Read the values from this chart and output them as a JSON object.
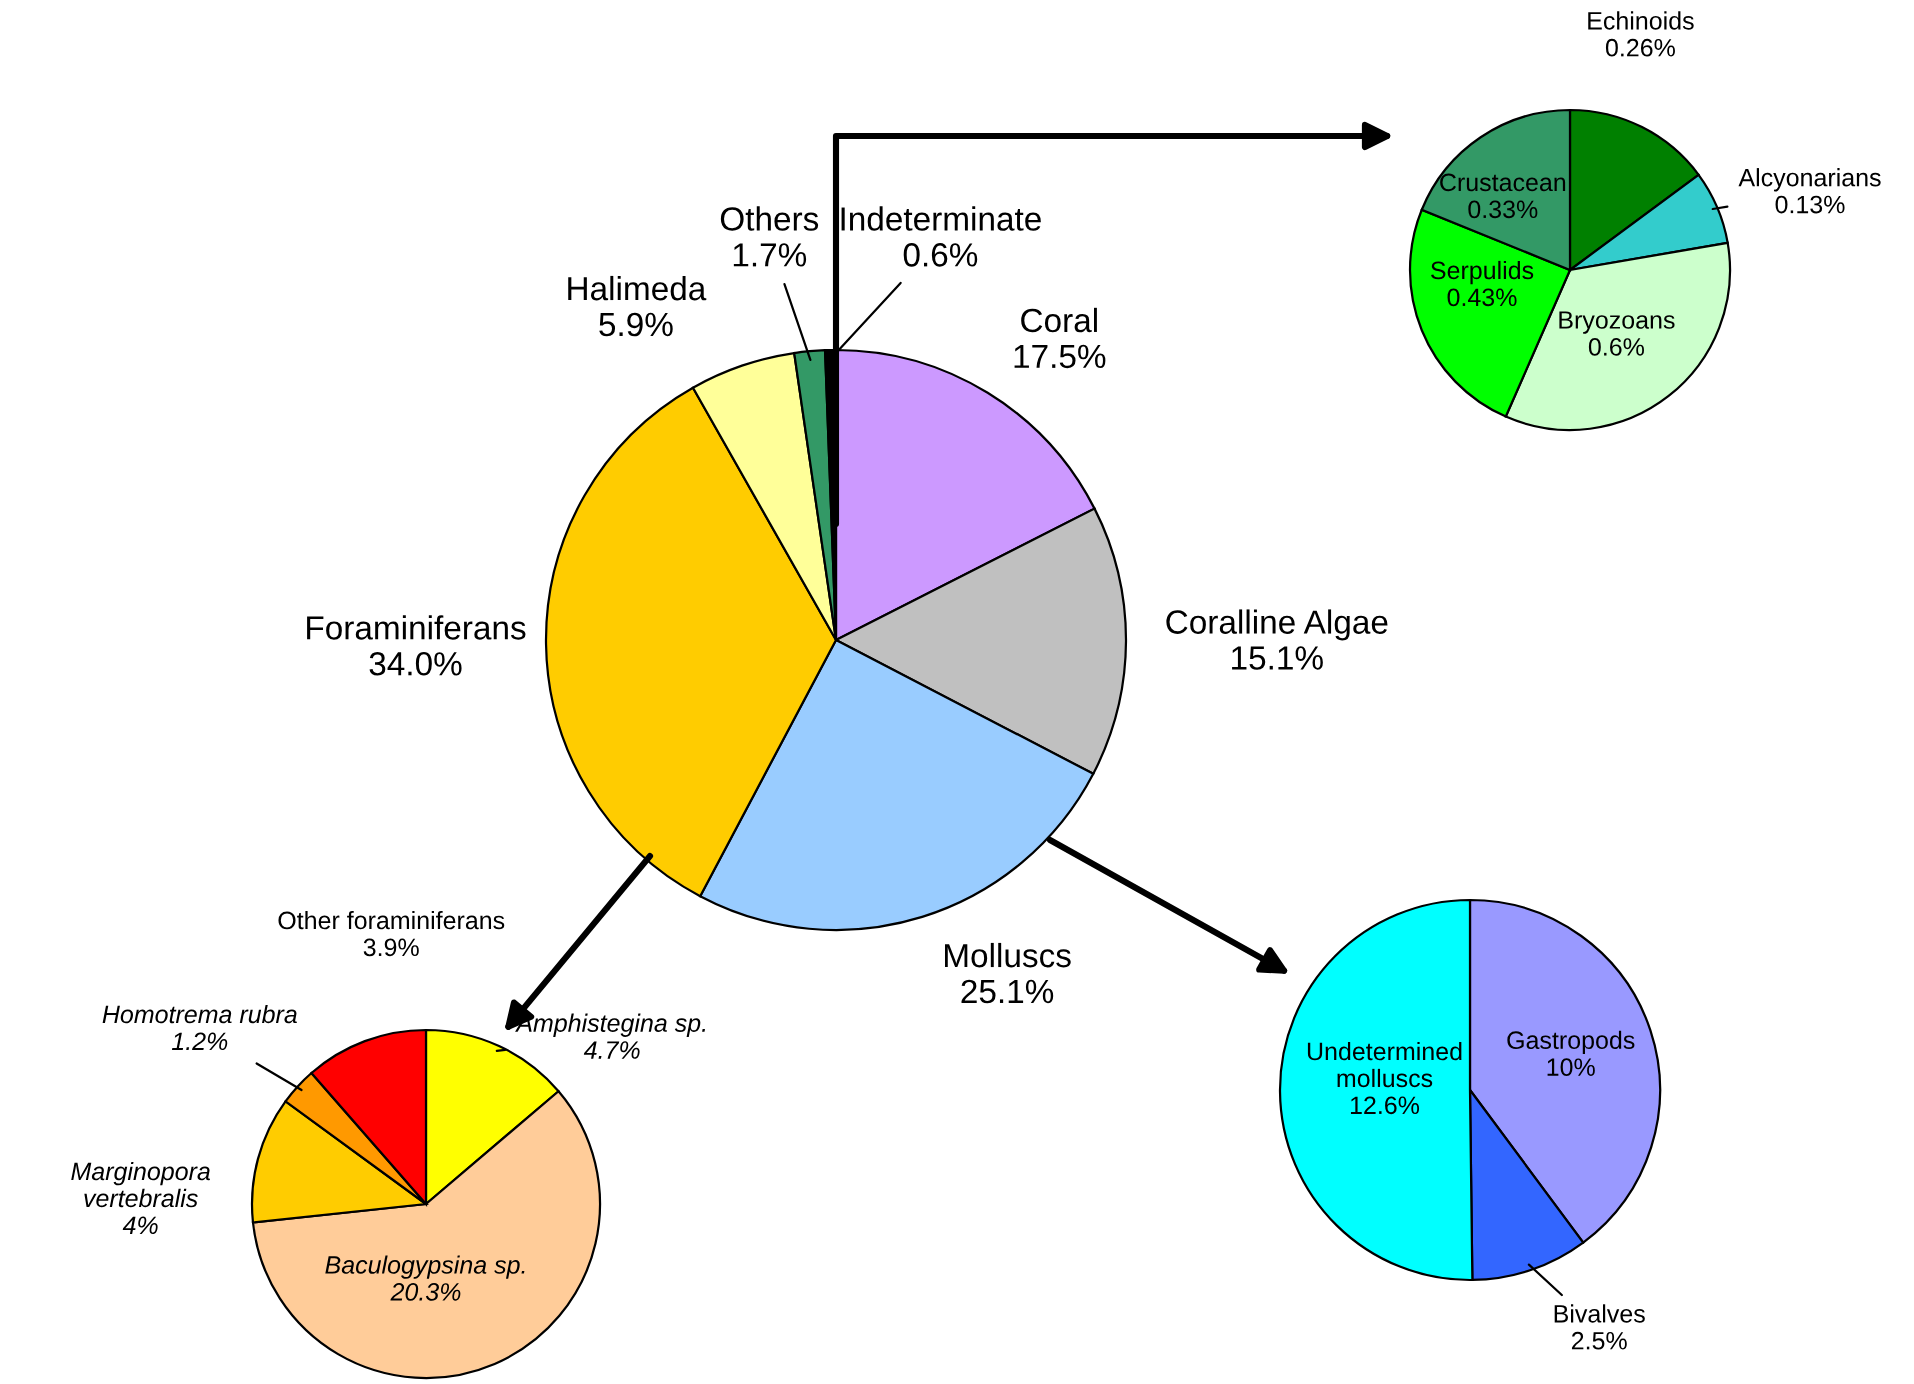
{
  "chart_data": [
    {
      "type": "pie",
      "categories": [
        "Coral",
        "Coralline Algae",
        "Molluscs",
        "Foraminiferans",
        "Halimeda",
        "Others",
        "Indeterminate"
      ],
      "values": [
        17.5,
        15.1,
        25.1,
        34.0,
        5.9,
        1.7,
        0.6
      ],
      "value_labels": [
        "17.5%",
        "15.1%",
        "25.1%",
        "34.0%",
        "5.9%",
        "1.7%",
        "0.6%"
      ],
      "colors": [
        "#cc99ff",
        "#c0c0c0",
        "#99ccff",
        "#ffcc00",
        "#ffff99",
        "#339966",
        "#000000"
      ]
    },
    {
      "type": "pie",
      "categories": [
        "Echinoids",
        "Alcyonarians",
        "Bryozoans",
        "Serpulids",
        "Crustacean"
      ],
      "values": [
        0.26,
        0.13,
        0.6,
        0.43,
        0.33
      ],
      "value_labels": [
        "0.26%",
        "0.13%",
        "0.6%",
        "0.43%",
        "0.33%"
      ],
      "colors": [
        "#008000",
        "#33cccc",
        "#ccffcc",
        "#00ff00",
        "#339966"
      ]
    },
    {
      "type": "pie",
      "categories": [
        "Amphistegina sp.",
        "Baculogypsina sp.",
        "Marginopora vertebralis",
        "Homotrema rubra",
        "Other foraminiferans"
      ],
      "values": [
        4.7,
        20.3,
        4,
        1.2,
        3.9
      ],
      "value_labels": [
        "4.7%",
        "20.3%",
        "4%",
        "1.2%",
        "3.9%"
      ],
      "colors": [
        "#ffff00",
        "#ffcc99",
        "#ffcc00",
        "#ff9900",
        "#ff0000"
      ]
    },
    {
      "type": "pie",
      "categories": [
        "Gastropods",
        "Bivalves",
        "Undetermined molluscs"
      ],
      "values": [
        10,
        2.5,
        12.6
      ],
      "value_labels": [
        "10%",
        "2.5%",
        "12.6%"
      ],
      "colors": [
        "#9999ff",
        "#3366ff",
        "#00ffff"
      ]
    }
  ]
}
